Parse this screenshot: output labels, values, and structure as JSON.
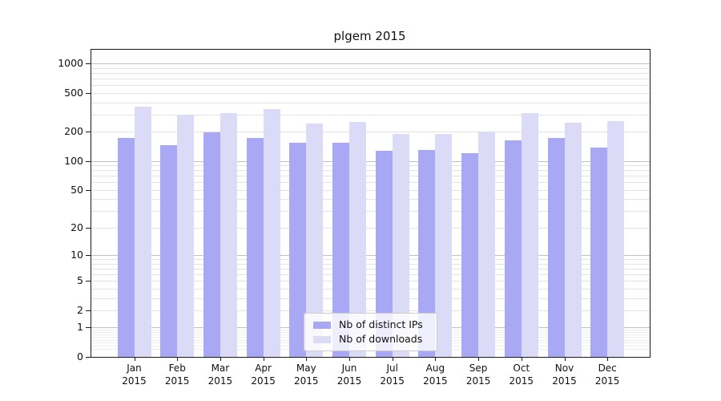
{
  "chart_title": "plgem 2015",
  "chart_data": {
    "type": "bar",
    "title": "plgem 2015",
    "year": "2015",
    "categories": [
      "Jan",
      "Feb",
      "Mar",
      "Apr",
      "May",
      "Jun",
      "Jul",
      "Aug",
      "Sep",
      "Oct",
      "Nov",
      "Dec"
    ],
    "series": [
      {
        "name": "Nb of distinct IPs",
        "color": "#a8a8f4",
        "values": [
          172,
          145,
          198,
          172,
          155,
          153,
          128,
          129,
          121,
          162,
          172,
          136
        ]
      },
      {
        "name": "Nb of downloads",
        "color": "#dbdbf8",
        "values": [
          364,
          299,
          311,
          339,
          241,
          250,
          191,
          188,
          202,
          308,
          249,
          257
        ]
      }
    ],
    "yscale": "log1p",
    "yticks": [
      0,
      1,
      2,
      5,
      10,
      20,
      50,
      100,
      200,
      500,
      1000
    ],
    "ylim": [
      0,
      1380
    ],
    "xlabel": "",
    "ylabel": "",
    "grid": true,
    "legend_position": "lower-center-inside"
  },
  "colors": {
    "bar_ips": "#a8a8f4",
    "bar_downloads": "#dbdbf8",
    "grid_major": "#c2c2c2",
    "grid_minor": "#e3e3e3",
    "grid_subminor": "#ededed",
    "axis": "#1a1a1a",
    "text": "#111111",
    "legend_border": "#cccccc"
  }
}
